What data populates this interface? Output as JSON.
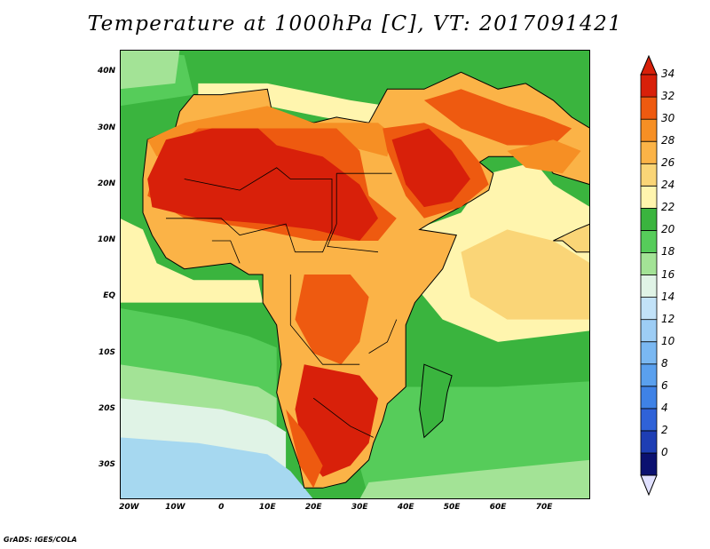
{
  "title": "Temperature at 1000hPa [C], VT: 2017091421",
  "credit": "GrADS: IGES/COLA",
  "map": {
    "lat_range": [
      -36,
      44
    ],
    "lon_range": [
      -22,
      80
    ],
    "lat_labels": [
      {
        "value": 40,
        "label": "40N"
      },
      {
        "value": 30,
        "label": "30N"
      },
      {
        "value": 20,
        "label": "20N"
      },
      {
        "value": 10,
        "label": "10N"
      },
      {
        "value": 0,
        "label": "EQ"
      },
      {
        "value": -10,
        "label": "10S"
      },
      {
        "value": -20,
        "label": "20S"
      },
      {
        "value": -30,
        "label": "30S"
      }
    ],
    "lon_labels": [
      {
        "value": -20,
        "label": "20W"
      },
      {
        "value": -10,
        "label": "10W"
      },
      {
        "value": 0,
        "label": "0"
      },
      {
        "value": 10,
        "label": "10E"
      },
      {
        "value": 20,
        "label": "20E"
      },
      {
        "value": 30,
        "label": "30E"
      },
      {
        "value": 40,
        "label": "40E"
      },
      {
        "value": 50,
        "label": "50E"
      },
      {
        "value": 60,
        "label": "60E"
      },
      {
        "value": 70,
        "label": "70E"
      }
    ],
    "colors": {
      "lt16": "#a6d8f0",
      "16": "#e0f3e6",
      "18": "#a3e396",
      "20": "#56cc5a",
      "22": "#3ab43e",
      "24": "#fff5ae",
      "26": "#fad577",
      "28": "#fbb347",
      "30": "#f68f24",
      "32": "#ee5a10",
      "34": "#d8200a",
      "land_edge": "#d8200a"
    },
    "fields": {
      "background_value": 22,
      "land_base_value": 28,
      "land_hot_value": 34,
      "madagascar_value": 22,
      "cool_sea_value": 16
    }
  },
  "colorbar": {
    "levels": [
      0,
      2,
      4,
      6,
      8,
      10,
      12,
      14,
      16,
      18,
      20,
      22,
      24,
      26,
      28,
      30,
      32,
      34
    ],
    "colors": [
      "#0b1170",
      "#1e3eb4",
      "#2f62d8",
      "#3f82e6",
      "#5aa0ee",
      "#7ab8f2",
      "#9dcdf5",
      "#c2e2f8",
      "#e0f3e6",
      "#a3e396",
      "#56cc5a",
      "#3ab43e",
      "#fff5ae",
      "#fad577",
      "#fbb347",
      "#f68f24",
      "#ee5a10",
      "#d8200a"
    ],
    "under_color": "#e0e0ff",
    "over_color": "#d8200a"
  }
}
